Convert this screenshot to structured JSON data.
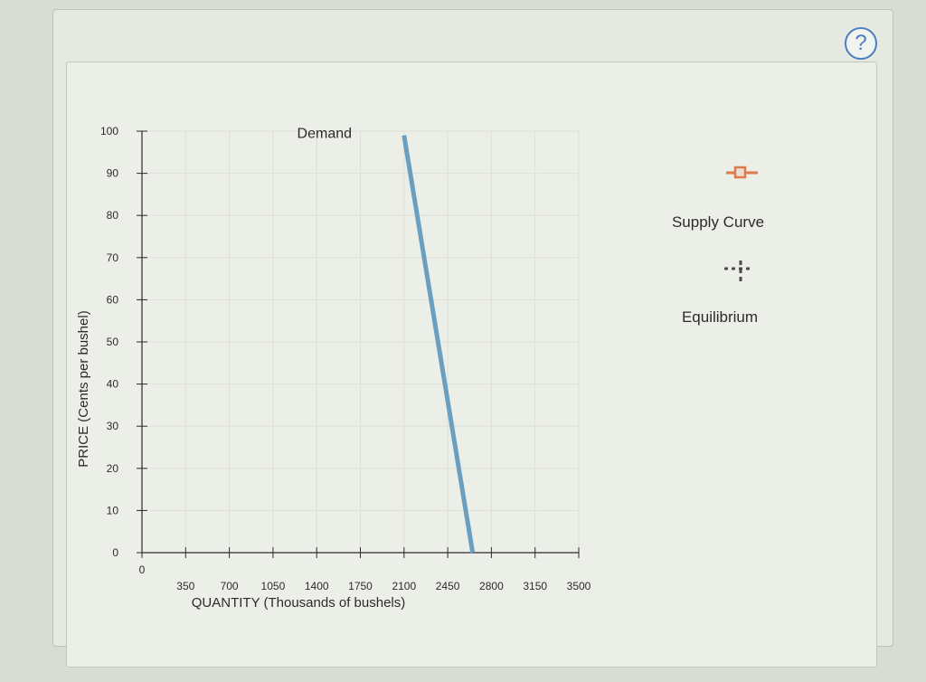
{
  "help_button": {
    "label": "?"
  },
  "legend": {
    "supply_label": "Supply Curve",
    "equilibrium_label": "Equilibrium",
    "supply_color": "#e07a4a",
    "equilibrium_color": "#4a4a4a",
    "supply_icon": "square-marker-icon",
    "equilibrium_icon": "plus-marker-icon"
  },
  "chart_data": {
    "type": "line",
    "xlabel": "QUANTITY (Thousands of bushels)",
    "ylabel": "PRICE (Cents per bushel)",
    "xlim": [
      0,
      3500
    ],
    "ylim": [
      0,
      100
    ],
    "xticks": [
      0,
      350,
      700,
      1050,
      1400,
      1750,
      2100,
      2450,
      2800,
      3150,
      3500
    ],
    "yticks": [
      0,
      10,
      20,
      30,
      40,
      50,
      60,
      70,
      80,
      90,
      100
    ],
    "grid": true,
    "series": [
      {
        "name": "Demand",
        "color": "#6a9fbf",
        "points": [
          {
            "x": 2100,
            "y": 99
          },
          {
            "x": 2650,
            "y": 0
          }
        ]
      }
    ]
  }
}
